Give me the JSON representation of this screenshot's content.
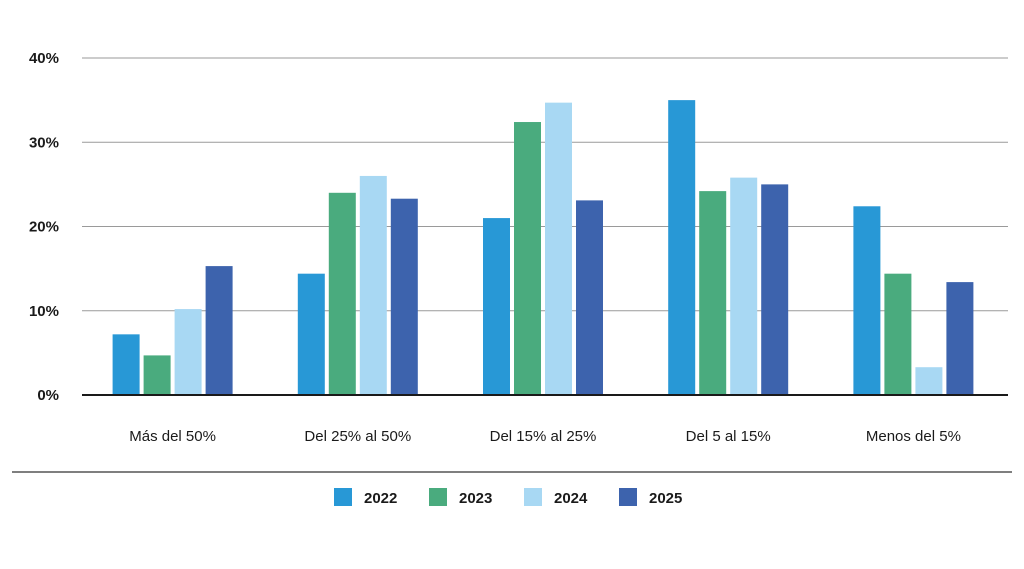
{
  "chart_data": {
    "type": "bar",
    "categories": [
      "Más del 50%",
      "Del 25% al 50%",
      "Del 15% al 25%",
      "Del 5 al 15%",
      "Menos del 5%"
    ],
    "series": [
      {
        "name": "2022",
        "color": "#2898d6",
        "values": [
          7.2,
          14.4,
          21.0,
          35.0,
          22.4
        ]
      },
      {
        "name": "2023",
        "color": "#4aab7e",
        "values": [
          4.7,
          24.0,
          32.4,
          24.2,
          14.4
        ]
      },
      {
        "name": "2024",
        "color": "#a8d8f3",
        "values": [
          10.2,
          26.0,
          34.7,
          25.8,
          3.3
        ]
      },
      {
        "name": "2025",
        "color": "#3d63ad",
        "values": [
          15.3,
          23.3,
          23.1,
          25.0,
          13.4
        ]
      }
    ],
    "y_ticks": [
      "0%",
      "10%",
      "20%",
      "30%",
      "40%"
    ],
    "ylim": [
      0,
      40
    ],
    "grid": true,
    "legend_position": "bottom"
  }
}
